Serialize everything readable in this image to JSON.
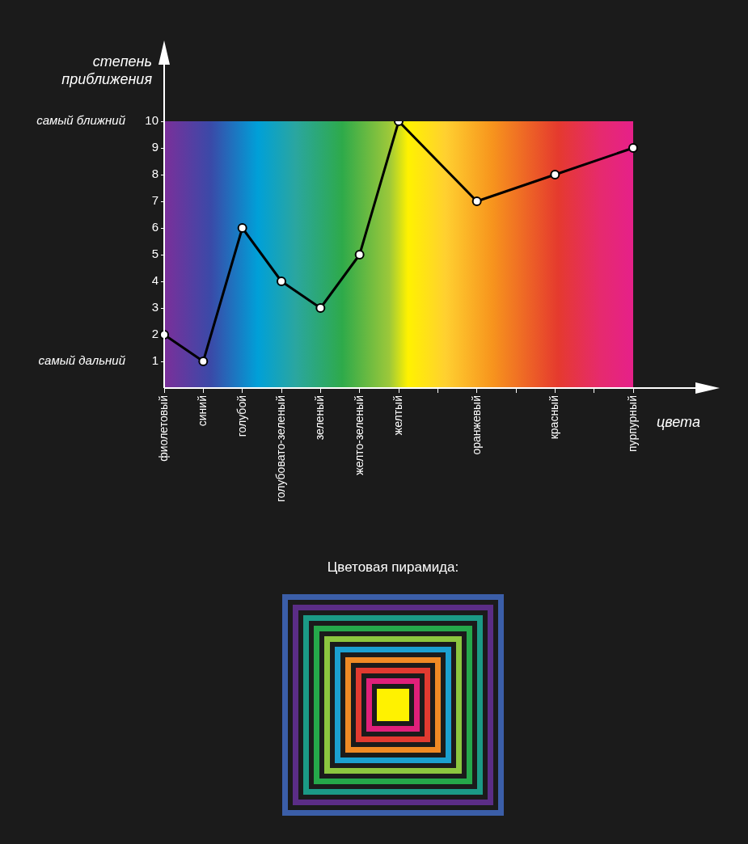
{
  "chart_data": {
    "type": "line",
    "xlabel": "цвета",
    "ylabel": "степень приближения",
    "categories": [
      "фиолетовый",
      "синий",
      "голубой",
      "голубовато-зеленый",
      "зеленый",
      "желто-зеленый",
      "желтый",
      null,
      "оранжевый",
      null,
      "красный",
      null,
      "пурпурный"
    ],
    "series": [
      {
        "color": "#000000",
        "values": [
          2,
          1,
          6,
          4,
          3,
          5,
          10,
          null,
          7,
          null,
          8,
          null,
          9
        ]
      }
    ],
    "ylim": [
      0,
      10
    ],
    "yticks": [
      1,
      2,
      3,
      4,
      5,
      6,
      7,
      8,
      9,
      10
    ],
    "marker": "circle",
    "line_style": "solid",
    "legend": false,
    "annotations": [
      "самый ближний",
      "самый дальний",
      "Цветовая пирамида:"
    ]
  }
}
